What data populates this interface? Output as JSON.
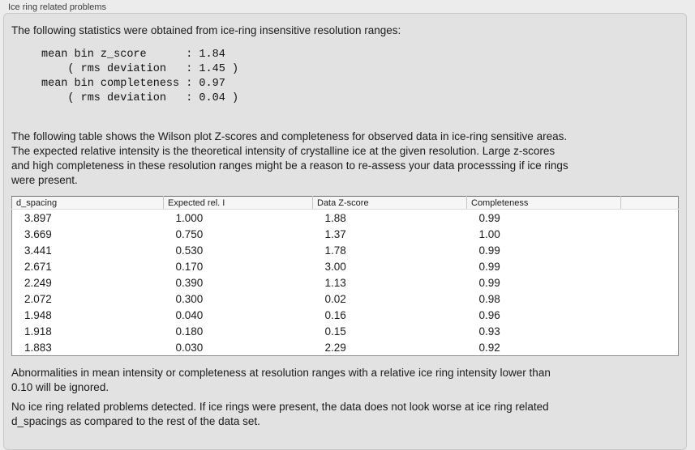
{
  "colors": {
    "page_bg": "#ececec",
    "panel_bg": "#e2e2e2",
    "panel_border": "#c9c9c9",
    "table_bg": "#ffffff",
    "table_border": "#8e8e8e",
    "table_header_bg": "#f6f6f6",
    "text": "#1b1b1b"
  },
  "panel": {
    "title": "Ice ring related problems"
  },
  "stats": {
    "intro": "The following statistics were obtained from ice-ring insensitive resolution ranges:",
    "block": "mean bin z_score      : 1.84\n    ( rms deviation   : 1.45 )\nmean bin completeness : 0.97\n    ( rms deviation   : 0.04 )"
  },
  "table_section": {
    "description": "The following table shows the Wilson plot Z-scores and completeness for observed data in ice-ring sensitive areas.\nThe expected relative intensity is the theoretical intensity of crystalline ice at the given resolution. Large z-scores\nand high completeness in these resolution ranges might be a reason to re-assess your data processsing if ice rings\nwere present."
  },
  "table": {
    "headers": [
      "d_spacing",
      "Expected rel. I",
      "Data Z-score",
      "Completeness",
      ""
    ],
    "rows": [
      [
        "3.897",
        "1.000",
        "1.88",
        "0.99"
      ],
      [
        "3.669",
        "0.750",
        "1.37",
        "1.00"
      ],
      [
        "3.441",
        "0.530",
        "1.78",
        "0.99"
      ],
      [
        "2.671",
        "0.170",
        "3.00",
        "0.99"
      ],
      [
        "2.249",
        "0.390",
        "1.13",
        "0.99"
      ],
      [
        "2.072",
        "0.300",
        "0.02",
        "0.98"
      ],
      [
        "1.948",
        "0.040",
        "0.16",
        "0.96"
      ],
      [
        "1.918",
        "0.180",
        "0.15",
        "0.93"
      ],
      [
        "1.883",
        "0.030",
        "2.29",
        "0.92"
      ]
    ]
  },
  "notes": {
    "ignore": "Abnormalities in mean intensity or completeness at resolution ranges with a relative ice ring intensity lower than\n0.10 will be ignored.",
    "conclusion": "No ice ring related problems detected. If ice rings were present, the data does not look worse at ice ring related\nd_spacings as compared to the rest of the data set."
  }
}
